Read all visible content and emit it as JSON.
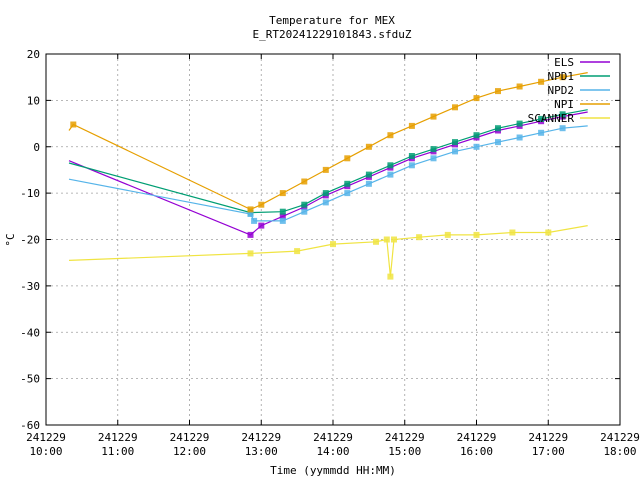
{
  "chart_data": {
    "type": "line",
    "title": "Temperature for MEX",
    "subtitle": "E_RT20241229101843.sfduZ",
    "xlabel": "Time (yymmdd HH:MM)",
    "ylabel": "°C",
    "xlim": [
      10.0,
      18.0
    ],
    "ylim": [
      -60,
      20
    ],
    "grid": true,
    "legend_position": "top-right",
    "x_ticks": [
      {
        "x": 10,
        "label1": "241229",
        "label2": "10:00"
      },
      {
        "x": 11,
        "label1": "241229",
        "label2": "11:00"
      },
      {
        "x": 12,
        "label1": "241229",
        "label2": "12:00"
      },
      {
        "x": 13,
        "label1": "241229",
        "label2": "13:00"
      },
      {
        "x": 14,
        "label1": "241229",
        "label2": "14:00"
      },
      {
        "x": 15,
        "label1": "241229",
        "label2": "15:00"
      },
      {
        "x": 16,
        "label1": "241229",
        "label2": "16:00"
      },
      {
        "x": 17,
        "label1": "241229",
        "label2": "17:00"
      },
      {
        "x": 18,
        "label1": "241229",
        "label2": "18:00"
      }
    ],
    "y_ticks": [
      20,
      10,
      0,
      -10,
      -20,
      -30,
      -40,
      -50,
      -60
    ],
    "series": [
      {
        "name": "ELS",
        "color": "#9400d3",
        "points": [
          [
            10.32,
            -3
          ],
          [
            12.85,
            -19
          ],
          [
            13.0,
            -17
          ],
          [
            13.3,
            -15
          ],
          [
            13.6,
            -13
          ],
          [
            13.9,
            -10.5
          ],
          [
            14.2,
            -8.5
          ],
          [
            14.5,
            -6.5
          ],
          [
            14.8,
            -4.5
          ],
          [
            15.1,
            -2.5
          ],
          [
            15.4,
            -1
          ],
          [
            15.7,
            0.5
          ],
          [
            16.0,
            2
          ],
          [
            16.3,
            3.5
          ],
          [
            16.6,
            4.5
          ],
          [
            16.9,
            5.5
          ],
          [
            17.2,
            6.5
          ],
          [
            17.55,
            7.5
          ]
        ]
      },
      {
        "name": "NPD1",
        "color": "#009e73",
        "points": [
          [
            10.32,
            -3.5
          ],
          [
            12.85,
            -14.2
          ],
          [
            13.3,
            -14
          ],
          [
            13.6,
            -12.5
          ],
          [
            13.9,
            -10
          ],
          [
            14.2,
            -8
          ],
          [
            14.5,
            -6
          ],
          [
            14.8,
            -4
          ],
          [
            15.1,
            -2
          ],
          [
            15.4,
            -0.5
          ],
          [
            15.7,
            1
          ],
          [
            16.0,
            2.5
          ],
          [
            16.3,
            4
          ],
          [
            16.6,
            5
          ],
          [
            16.9,
            6
          ],
          [
            17.2,
            7
          ],
          [
            17.55,
            8
          ]
        ]
      },
      {
        "name": "NPD2",
        "color": "#56b4e9",
        "points": [
          [
            10.32,
            -7
          ],
          [
            12.85,
            -14.5
          ],
          [
            12.9,
            -16
          ],
          [
            13.3,
            -16
          ],
          [
            13.6,
            -14
          ],
          [
            13.9,
            -12
          ],
          [
            14.2,
            -10
          ],
          [
            14.5,
            -8
          ],
          [
            14.8,
            -6
          ],
          [
            15.1,
            -4
          ],
          [
            15.4,
            -2.5
          ],
          [
            15.7,
            -1
          ],
          [
            16.0,
            0
          ],
          [
            16.3,
            1
          ],
          [
            16.6,
            2
          ],
          [
            16.9,
            3
          ],
          [
            17.2,
            4
          ],
          [
            17.55,
            4.5
          ]
        ]
      },
      {
        "name": "NPI",
        "color": "#e69f00",
        "points": [
          [
            10.32,
            3.5
          ],
          [
            10.38,
            4.8
          ],
          [
            12.85,
            -13.5
          ],
          [
            13.0,
            -12.5
          ],
          [
            13.3,
            -10
          ],
          [
            13.6,
            -7.5
          ],
          [
            13.9,
            -5
          ],
          [
            14.2,
            -2.5
          ],
          [
            14.5,
            0
          ],
          [
            14.8,
            2.5
          ],
          [
            15.1,
            4.5
          ],
          [
            15.4,
            6.5
          ],
          [
            15.7,
            8.5
          ],
          [
            16.0,
            10.5
          ],
          [
            16.3,
            12
          ],
          [
            16.6,
            13
          ],
          [
            16.9,
            14
          ],
          [
            17.2,
            15
          ],
          [
            17.55,
            16
          ]
        ]
      },
      {
        "name": "SCANNER",
        "color": "#f0e442",
        "points": [
          [
            10.32,
            -24.5
          ],
          [
            12.85,
            -23
          ],
          [
            13.5,
            -22.5
          ],
          [
            14.0,
            -21
          ],
          [
            14.6,
            -20.5
          ],
          [
            14.75,
            -20
          ],
          [
            14.8,
            -28
          ],
          [
            14.85,
            -20
          ],
          [
            15.2,
            -19.5
          ],
          [
            15.6,
            -19
          ],
          [
            16.0,
            -19
          ],
          [
            16.5,
            -18.5
          ],
          [
            17.0,
            -18.5
          ],
          [
            17.55,
            -17
          ]
        ]
      }
    ]
  }
}
